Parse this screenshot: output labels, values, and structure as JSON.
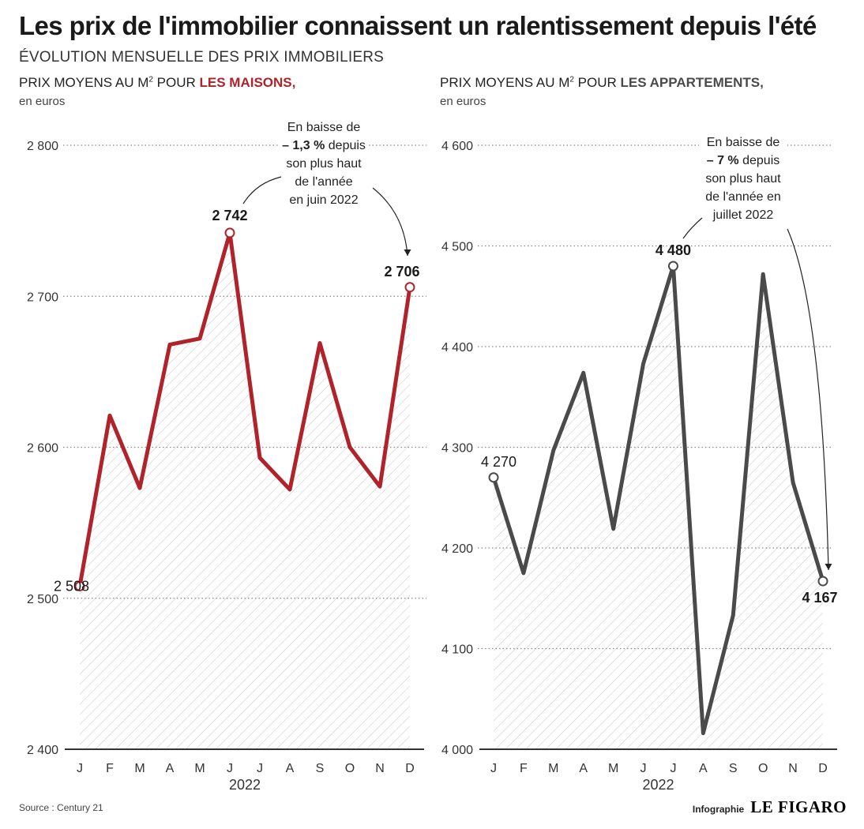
{
  "header": {
    "title": "Les prix de l'immobilier connaissent un ralentissement depuis l'été",
    "subtitle": "ÉVOLUTION  MENSUELLE DES PRIX IMMOBILIERS"
  },
  "panels": {
    "left": {
      "title_prefix": "PRIX MOYENS AU M",
      "title_sup": "2",
      "title_mid": " POUR ",
      "title_highlight": "LES MAISONS,",
      "unit": "en euros"
    },
    "right": {
      "title_prefix": "PRIX MOYENS AU M",
      "title_sup": "2",
      "title_mid": " POUR ",
      "title_highlight": "LES APPARTEMENTS,",
      "unit": "en euros"
    }
  },
  "footer": {
    "source": "Source : Century 21",
    "credit_label": "Infographie",
    "credit_logo": "LE FIGARO"
  },
  "colors": {
    "maisons": "#b0232a",
    "appartements": "#4a4a4a",
    "hatch": "#c8c8c8",
    "grid": "#888888"
  },
  "chart_data": [
    {
      "type": "line",
      "title": "PRIX MOYENS AU M² POUR LES MAISONS,",
      "ylabel": "en euros",
      "xlabel": "2022",
      "categories": [
        "J",
        "F",
        "M",
        "A",
        "M",
        "J",
        "J",
        "A",
        "S",
        "O",
        "N",
        "D"
      ],
      "series": [
        {
          "name": "LES MAISONS",
          "values": [
            2508,
            2621,
            2573,
            2668,
            2672,
            2742,
            2593,
            2572,
            2669,
            2600,
            2574,
            2706
          ]
        }
      ],
      "ylim": [
        2400,
        2800
      ],
      "yticks": [
        2400,
        2500,
        2600,
        2700,
        2800
      ],
      "ytick_labels": [
        "2 400",
        "2 500",
        "2 600",
        "2 700",
        "2 800"
      ],
      "grid": true,
      "area_fill": "hatched",
      "color": "#b0232a",
      "point_labels": [
        {
          "index": 0,
          "text": "2 508",
          "bold": false
        },
        {
          "index": 5,
          "text": "2 742",
          "bold": true
        },
        {
          "index": 11,
          "text": "2 706",
          "bold": true
        }
      ],
      "annotation": {
        "lines": [
          "En baisse de",
          "– 1,3 %| depuis",
          "son plus haut",
          "de l'année",
          "en juin 2022"
        ],
        "text": "En baisse de – 1,3 % depuis son plus haut de l'année en juin 2022",
        "bold_part": "– 1,3 %"
      }
    },
    {
      "type": "line",
      "title": "PRIX MOYENS AU M² POUR LES APPARTEMENTS,",
      "ylabel": "en euros",
      "xlabel": "2022",
      "categories": [
        "J",
        "F",
        "M",
        "A",
        "M",
        "J",
        "J",
        "A",
        "S",
        "O",
        "N",
        "D"
      ],
      "series": [
        {
          "name": "LES APPARTEMENTS",
          "values": [
            4270,
            4175,
            4297,
            4374,
            4219,
            4383,
            4480,
            4016,
            4133,
            4472,
            4265,
            4167
          ]
        }
      ],
      "ylim": [
        4000,
        4600
      ],
      "yticks": [
        4000,
        4100,
        4200,
        4300,
        4400,
        4500,
        4600
      ],
      "ytick_labels": [
        "4 000",
        "4 100",
        "4 200",
        "4 300",
        "4 400",
        "4 500",
        "4 600"
      ],
      "grid": true,
      "area_fill": "hatched",
      "color": "#4a4a4a",
      "point_labels": [
        {
          "index": 0,
          "text": "4 270",
          "bold": false
        },
        {
          "index": 6,
          "text": "4 480",
          "bold": true
        },
        {
          "index": 11,
          "text": "4 167",
          "bold": true
        }
      ],
      "annotation": {
        "lines": [
          "En baisse de",
          "– 7 %| depuis",
          "son plus haut",
          "de l'année en",
          "juillet  2022"
        ],
        "text": "En baisse de – 7 % depuis son plus haut de l'année en juillet  2022",
        "bold_part": "– 7 %"
      }
    }
  ]
}
